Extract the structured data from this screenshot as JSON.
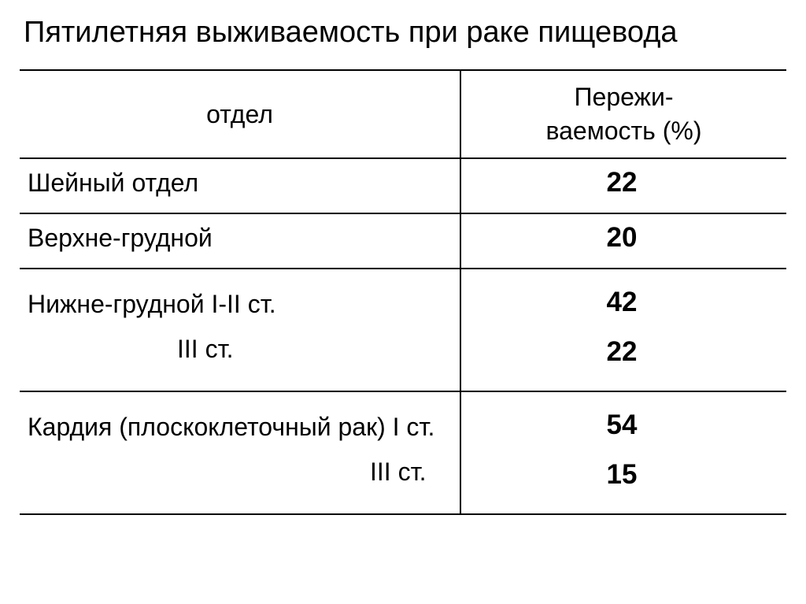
{
  "table": {
    "type": "table",
    "title": "Пятилетняя выживаемость при раке пищевода",
    "columns": {
      "col1_header": "отдел",
      "col2_header_line1": "Пережи-",
      "col2_header_line2": "ваемость (%)"
    },
    "rows": [
      {
        "label": "Шейный отдел",
        "value": "22"
      },
      {
        "label": "Верхне-грудной",
        "value": "20"
      },
      {
        "label_line1": "Нижне-грудной I-II ст.",
        "label_line2": "III ст.",
        "value_line1": "42",
        "value_line2": "22"
      },
      {
        "label_line1": "Кардия (плоскоклеточный рак) I ст.",
        "label_line2": "III ст.",
        "value_line1": "54",
        "value_line2": "15"
      }
    ],
    "styling": {
      "background_color": "#ffffff",
      "text_color": "#000000",
      "border_color": "#000000",
      "border_width": 2,
      "title_fontsize": 38,
      "header_fontsize": 32,
      "label_fontsize": 32,
      "value_fontsize": 35,
      "value_fontweight": 700,
      "col1_width": 560,
      "col1_align": "left",
      "col2_align": "center",
      "header_align": "center"
    }
  }
}
